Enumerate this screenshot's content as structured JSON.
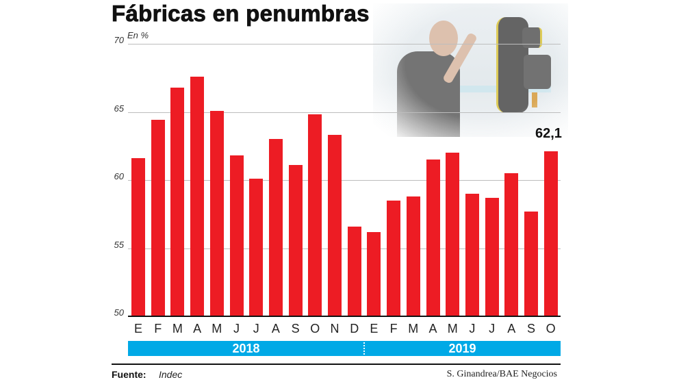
{
  "title": "Fábricas en penumbras",
  "unit_label": "En %",
  "callout": "62,1",
  "source_label": "Fuente:",
  "source_value": "Indec",
  "credit": "S. Ginandrea/BAE Negocios",
  "colors": {
    "bar": "#ed1c24",
    "band": "#00a9e6",
    "grid": "#bdbdbd",
    "text": "#111111"
  },
  "photo": "faded-photo-worker-with-robot-arm",
  "chart_data": {
    "type": "bar",
    "title": "Fábricas en penumbras",
    "ylabel": "En %",
    "xlabel": "",
    "ylim": [
      50,
      70
    ],
    "yticks": [
      70,
      65,
      60,
      55,
      50
    ],
    "grid": true,
    "legend": "none",
    "categories": [
      "E",
      "F",
      "M",
      "A",
      "M",
      "J",
      "J",
      "A",
      "S",
      "O",
      "N",
      "D",
      "E",
      "F",
      "M",
      "A",
      "M",
      "J",
      "J",
      "A",
      "S",
      "O"
    ],
    "year_groups": [
      {
        "label": "2018",
        "months": 12
      },
      {
        "label": "2019",
        "months": 10
      }
    ],
    "values": [
      61.6,
      64.4,
      66.8,
      67.6,
      65.1,
      61.8,
      60.1,
      63.0,
      61.1,
      64.8,
      63.3,
      56.6,
      56.2,
      58.5,
      58.8,
      61.5,
      62.0,
      59.0,
      58.7,
      60.5,
      57.7,
      62.1
    ],
    "annotations": [
      {
        "index": 21,
        "text": "62,1"
      }
    ]
  }
}
